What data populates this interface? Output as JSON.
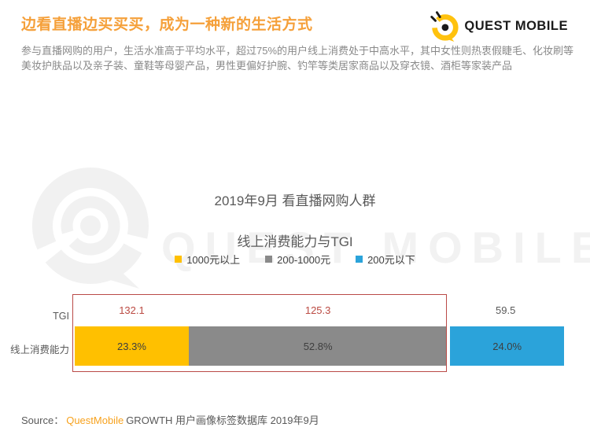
{
  "header": {
    "title": "边看直播边买买买，成为一种新的生活方式",
    "body_line1": "参与直播网购的用户，生活水准高于平均水平，超过75%的用户线上消费处于中高水平，其中女性则热衷假睫毛、化妆刷等",
    "body_line2": "美妆护肤品以及亲子装、童鞋等母婴产品，男性更偏好护腕、钓竿等类居家商品以及穿衣镜、酒柜等家装产品"
  },
  "brand": {
    "logo_text": "QUEST MOBILE",
    "watermark_text": "QUEST MOBILE",
    "logo_yellow": "#FFC20E",
    "logo_black": "#1a1a1a"
  },
  "chart_data": {
    "type": "bar",
    "orientation": "horizontal_stacked",
    "title": "2019年9月 看直播网购人群",
    "subtitle": "线上消费能力与TGI",
    "legend_position": "top-center",
    "grid": false,
    "row_labels": {
      "tgi": "TGI",
      "bar": "线上消费能力"
    },
    "categories": [
      "1000元以上",
      "200-1000元",
      "200元以下"
    ],
    "segments": [
      {
        "category": "1000元以上",
        "share_pct": 23.3,
        "share_label": "23.3%",
        "tgi": 132.1,
        "tgi_label": "132.1",
        "color": "#FFC000",
        "tgi_color": "#BB4A42",
        "highlighted": true
      },
      {
        "category": "200-1000元",
        "share_pct": 52.8,
        "share_label": "52.8%",
        "tgi": 125.3,
        "tgi_label": "125.3",
        "color": "#8A8A8A",
        "tgi_color": "#BB4A42",
        "highlighted": true
      },
      {
        "category": "200元以下",
        "share_pct": 24.0,
        "share_label": "24.0%",
        "tgi": 59.5,
        "tgi_label": "59.5",
        "color": "#2BA3DA",
        "tgi_color": "#595959",
        "highlighted": false
      }
    ],
    "highlight_box": {
      "note": "red outline enclosing TGI values and bar segments of 1000元以上 and 200-1000元",
      "color": "#BA4A47"
    }
  },
  "source": {
    "prefix": "Source：",
    "brand": "QuestMobile",
    "rest": "GROWTH 用户画像标签数据库 2019年9月"
  },
  "colors": {
    "title_orange": "#F5A03A",
    "accent_orange": "#F7A21E",
    "body_gray": "#8A8A8A",
    "chart_text_gray": "#595959",
    "watermark_gray": "#f1f1f1"
  }
}
